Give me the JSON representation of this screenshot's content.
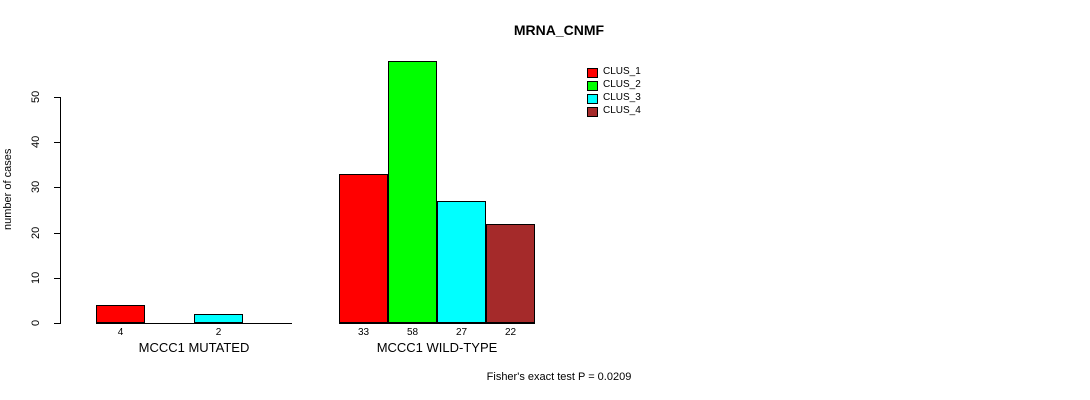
{
  "chart_data": {
    "type": "bar",
    "title": "MRNA_CNMF",
    "ylabel": "number of cases",
    "xlabel": "",
    "y_ticks": [
      0,
      10,
      20,
      30,
      40,
      50
    ],
    "ylim": [
      0,
      58
    ],
    "grid": false,
    "categories": [
      "MCCC1 MUTATED",
      "MCCC1 WILD-TYPE"
    ],
    "series": [
      {
        "name": "CLUS_1",
        "color": "#ff0000",
        "values": [
          4,
          33
        ]
      },
      {
        "name": "CLUS_2",
        "color": "#00ff00",
        "values": [
          0,
          58
        ]
      },
      {
        "name": "CLUS_3",
        "color": "#00ffff",
        "values": [
          2,
          27
        ]
      },
      {
        "name": "CLUS_4",
        "color": "#a52a2a",
        "values": [
          0,
          22
        ]
      }
    ],
    "value_labels_note": "bar value printed under each drawn bar; zero-value bars are not drawn and not labeled",
    "legend_position": "top-right",
    "annotation": "Fisher's exact test P = 0.0209",
    "colors": {
      "bar_outline": "#000000",
      "background": "#ffffff",
      "text": "#000000"
    }
  }
}
